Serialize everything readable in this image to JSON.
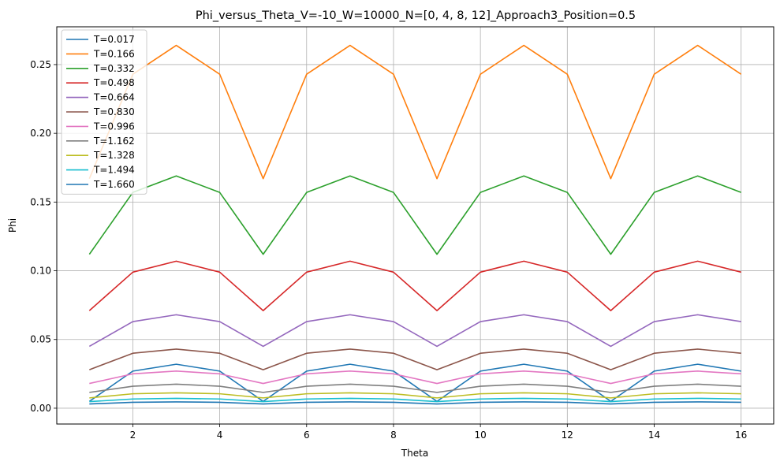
{
  "chart_data": {
    "type": "line",
    "title": "Phi_versus_Theta_V=-10_W=10000_N=[0, 4, 8, 12]_Approach3_Position=0.5",
    "xlabel": "Theta",
    "ylabel": "Phi",
    "xlim": [
      0.25,
      16.75
    ],
    "ylim": [
      -0.0115,
      0.2775
    ],
    "xticks": [
      2,
      4,
      6,
      8,
      10,
      12,
      14,
      16
    ],
    "xtick_labels": [
      "2",
      "4",
      "6",
      "8",
      "10",
      "12",
      "14",
      "16"
    ],
    "yticks": [
      0.0,
      0.05,
      0.1,
      0.15,
      0.2,
      0.25
    ],
    "ytick_labels": [
      "0.00",
      "0.05",
      "0.10",
      "0.15",
      "0.20",
      "0.25"
    ],
    "grid": true,
    "legend_position": "upper-left",
    "x": [
      1,
      2,
      3,
      4,
      5,
      6,
      7,
      8,
      9,
      10,
      11,
      12,
      13,
      14,
      15,
      16
    ],
    "series": [
      {
        "name": "T=0.017",
        "color": "#1f77b4",
        "values": [
          0.005,
          0.027,
          0.032,
          0.027,
          0.005,
          0.027,
          0.032,
          0.027,
          0.005,
          0.027,
          0.032,
          0.027,
          0.005,
          0.027,
          0.032,
          0.027
        ]
      },
      {
        "name": "T=0.166",
        "color": "#ff7f0e",
        "values": [
          0.167,
          0.243,
          0.264,
          0.243,
          0.167,
          0.243,
          0.264,
          0.243,
          0.167,
          0.243,
          0.264,
          0.243,
          0.167,
          0.243,
          0.264,
          0.243
        ]
      },
      {
        "name": "T=0.332",
        "color": "#2ca02c",
        "values": [
          0.112,
          0.157,
          0.169,
          0.157,
          0.112,
          0.157,
          0.169,
          0.157,
          0.112,
          0.157,
          0.169,
          0.157,
          0.112,
          0.157,
          0.169,
          0.157
        ]
      },
      {
        "name": "T=0.498",
        "color": "#d62728",
        "values": [
          0.071,
          0.099,
          0.107,
          0.099,
          0.071,
          0.099,
          0.107,
          0.099,
          0.071,
          0.099,
          0.107,
          0.099,
          0.071,
          0.099,
          0.107,
          0.099
        ]
      },
      {
        "name": "T=0.664",
        "color": "#9467bd",
        "values": [
          0.045,
          0.063,
          0.068,
          0.063,
          0.045,
          0.063,
          0.068,
          0.063,
          0.045,
          0.063,
          0.068,
          0.063,
          0.045,
          0.063,
          0.068,
          0.063
        ]
      },
      {
        "name": "T=0.830",
        "color": "#8c564b",
        "values": [
          0.028,
          0.04,
          0.043,
          0.04,
          0.028,
          0.04,
          0.043,
          0.04,
          0.028,
          0.04,
          0.043,
          0.04,
          0.028,
          0.04,
          0.043,
          0.04
        ]
      },
      {
        "name": "T=0.996",
        "color": "#e377c2",
        "values": [
          0.018,
          0.025,
          0.027,
          0.025,
          0.018,
          0.025,
          0.027,
          0.025,
          0.018,
          0.025,
          0.027,
          0.025,
          0.018,
          0.025,
          0.027,
          0.025
        ]
      },
      {
        "name": "T=1.162",
        "color": "#7f7f7f",
        "values": [
          0.0115,
          0.016,
          0.0175,
          0.016,
          0.0115,
          0.016,
          0.0175,
          0.016,
          0.0115,
          0.016,
          0.0175,
          0.016,
          0.0115,
          0.016,
          0.0175,
          0.016
        ]
      },
      {
        "name": "T=1.328",
        "color": "#bcbd22",
        "values": [
          0.0075,
          0.0105,
          0.0112,
          0.0105,
          0.0075,
          0.0105,
          0.0112,
          0.0105,
          0.0075,
          0.0105,
          0.0112,
          0.0105,
          0.0075,
          0.0105,
          0.0112,
          0.0105
        ]
      },
      {
        "name": "T=1.494",
        "color": "#17becf",
        "values": [
          0.0048,
          0.0067,
          0.0072,
          0.0067,
          0.0048,
          0.0067,
          0.0072,
          0.0067,
          0.0048,
          0.0067,
          0.0072,
          0.0067,
          0.0048,
          0.0067,
          0.0072,
          0.0067
        ]
      },
      {
        "name": "T=1.660",
        "color": "#1f77b4",
        "values": [
          0.0031,
          0.0043,
          0.0046,
          0.0043,
          0.0031,
          0.0043,
          0.0046,
          0.0043,
          0.0031,
          0.0043,
          0.0046,
          0.0043,
          0.0031,
          0.0043,
          0.0046,
          0.0043
        ]
      }
    ]
  }
}
